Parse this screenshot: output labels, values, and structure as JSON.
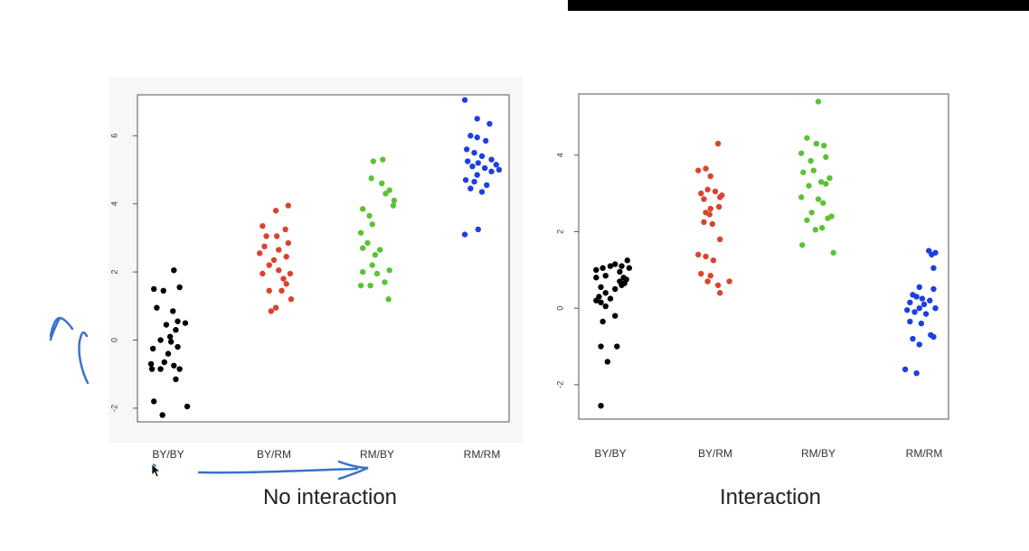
{
  "chart_data": [
    {
      "type": "scatter",
      "title": "",
      "caption": "No interaction",
      "xlabel": "",
      "ylabel": "",
      "categories": [
        "BY/BY",
        "BY/RM",
        "RM/BY",
        "RM/RM"
      ],
      "ylim": [
        -2.4,
        7.2
      ],
      "yticks": [
        -2,
        0,
        2,
        4,
        6
      ],
      "grid": false,
      "series": [
        {
          "category": "BY/BY",
          "color": "#000000",
          "points": [
            [
              -0.15,
              1.5
            ],
            [
              -0.05,
              1.45
            ],
            [
              0.06,
              2.05
            ],
            [
              0.12,
              1.55
            ],
            [
              -0.12,
              0.95
            ],
            [
              0.05,
              0.85
            ],
            [
              0.1,
              0.55
            ],
            [
              0.18,
              0.5
            ],
            [
              -0.02,
              0.45
            ],
            [
              0.08,
              0.3
            ],
            [
              0.02,
              0.1
            ],
            [
              -0.08,
              0.0
            ],
            [
              0.03,
              -0.05
            ],
            [
              -0.16,
              -0.25
            ],
            [
              0.1,
              -0.2
            ],
            [
              0.0,
              -0.4
            ],
            [
              -0.18,
              -0.7
            ],
            [
              -0.04,
              -0.65
            ],
            [
              0.06,
              -0.75
            ],
            [
              0.12,
              -0.85
            ],
            [
              -0.17,
              -0.85
            ],
            [
              -0.08,
              -0.85
            ],
            [
              0.08,
              -1.15
            ],
            [
              -0.15,
              -1.8
            ],
            [
              0.2,
              -1.95
            ],
            [
              -0.06,
              -2.2
            ]
          ]
        },
        {
          "category": "BY/RM",
          "color": "#d9432f",
          "points": [
            [
              -0.12,
              3.35
            ],
            [
              0.02,
              3.8
            ],
            [
              0.15,
              3.95
            ],
            [
              0.12,
              3.25
            ],
            [
              -0.08,
              3.05
            ],
            [
              0.03,
              3.05
            ],
            [
              0.15,
              2.85
            ],
            [
              -0.1,
              2.75
            ],
            [
              0.05,
              2.65
            ],
            [
              -0.15,
              2.55
            ],
            [
              0.0,
              2.35
            ],
            [
              0.13,
              2.45
            ],
            [
              -0.05,
              2.2
            ],
            [
              0.05,
              2.05
            ],
            [
              0.17,
              1.95
            ],
            [
              -0.12,
              1.95
            ],
            [
              0.1,
              1.8
            ],
            [
              0.13,
              1.65
            ],
            [
              -0.05,
              1.45
            ],
            [
              0.08,
              1.45
            ],
            [
              0.18,
              1.2
            ],
            [
              0.02,
              0.95
            ],
            [
              -0.03,
              0.85
            ]
          ]
        },
        {
          "category": "RM/BY",
          "color": "#5bc236",
          "points": [
            [
              -0.04,
              5.25
            ],
            [
              0.06,
              5.3
            ],
            [
              -0.06,
              4.75
            ],
            [
              0.05,
              4.6
            ],
            [
              0.13,
              4.4
            ],
            [
              0.09,
              4.3
            ],
            [
              0.18,
              4.1
            ],
            [
              0.17,
              3.95
            ],
            [
              -0.15,
              3.85
            ],
            [
              -0.08,
              3.65
            ],
            [
              -0.05,
              3.4
            ],
            [
              -0.17,
              3.15
            ],
            [
              -0.1,
              2.85
            ],
            [
              -0.15,
              2.7
            ],
            [
              0.03,
              2.65
            ],
            [
              -0.02,
              2.5
            ],
            [
              -0.05,
              2.2
            ],
            [
              0.13,
              2.05
            ],
            [
              -0.15,
              2.0
            ],
            [
              0.0,
              1.95
            ],
            [
              0.08,
              1.7
            ],
            [
              -0.07,
              1.6
            ],
            [
              -0.17,
              1.6
            ],
            [
              0.12,
              1.2
            ]
          ]
        },
        {
          "category": "RM/RM",
          "color": "#1d3fe0",
          "points": [
            [
              -0.18,
              7.05
            ],
            [
              -0.05,
              6.5
            ],
            [
              0.08,
              6.35
            ],
            [
              -0.12,
              6.0
            ],
            [
              -0.05,
              5.95
            ],
            [
              0.04,
              5.85
            ],
            [
              -0.16,
              5.6
            ],
            [
              -0.08,
              5.5
            ],
            [
              0.0,
              5.4
            ],
            [
              -0.15,
              5.25
            ],
            [
              -0.04,
              5.2
            ],
            [
              0.1,
              5.3
            ],
            [
              0.15,
              5.15
            ],
            [
              -0.1,
              5.1
            ],
            [
              0.03,
              5.05
            ],
            [
              0.18,
              5.0
            ],
            [
              0.1,
              4.95
            ],
            [
              -0.05,
              4.85
            ],
            [
              -0.17,
              4.7
            ],
            [
              -0.08,
              4.65
            ],
            [
              0.05,
              4.55
            ],
            [
              -0.12,
              4.45
            ],
            [
              0.0,
              4.35
            ],
            [
              -0.04,
              3.25
            ],
            [
              -0.18,
              3.1
            ]
          ]
        }
      ]
    },
    {
      "type": "scatter",
      "title": "",
      "caption": "Interaction",
      "xlabel": "",
      "ylabel": "",
      "categories": [
        "BY/BY",
        "BY/RM",
        "RM/BY",
        "RM/RM"
      ],
      "ylim": [
        -2.9,
        5.6
      ],
      "yticks": [
        -2,
        0,
        2,
        4
      ],
      "grid": false,
      "series": [
        {
          "category": "BY/BY",
          "color": "#000000",
          "points": [
            [
              0.18,
              1.25
            ],
            [
              0.12,
              1.1
            ],
            [
              0.2,
              1.05
            ],
            [
              -0.15,
              1.0
            ],
            [
              -0.08,
              1.05
            ],
            [
              0.0,
              1.1
            ],
            [
              0.05,
              1.15
            ],
            [
              0.1,
              0.95
            ],
            [
              0.14,
              0.8
            ],
            [
              0.17,
              0.75
            ],
            [
              -0.05,
              0.85
            ],
            [
              -0.15,
              0.8
            ],
            [
              0.15,
              0.65
            ],
            [
              0.12,
              0.6
            ],
            [
              -0.1,
              0.55
            ],
            [
              0.05,
              0.5
            ],
            [
              0.1,
              0.7
            ],
            [
              -0.05,
              0.4
            ],
            [
              -0.12,
              0.3
            ],
            [
              0.0,
              0.25
            ],
            [
              -0.1,
              0.15
            ],
            [
              -0.15,
              0.2
            ],
            [
              -0.05,
              0.05
            ],
            [
              0.05,
              -0.2
            ],
            [
              -0.08,
              -0.35
            ],
            [
              0.07,
              -1.0
            ],
            [
              -0.1,
              -1.0
            ],
            [
              -0.03,
              -1.4
            ],
            [
              -0.1,
              -2.55
            ]
          ]
        },
        {
          "category": "BY/RM",
          "color": "#d9432f",
          "points": [
            [
              0.03,
              4.3
            ],
            [
              -0.18,
              3.6
            ],
            [
              -0.1,
              3.65
            ],
            [
              -0.05,
              3.45
            ],
            [
              -0.15,
              3.0
            ],
            [
              -0.08,
              3.1
            ],
            [
              0.0,
              3.05
            ],
            [
              0.05,
              2.9
            ],
            [
              -0.12,
              2.85
            ],
            [
              0.07,
              2.95
            ],
            [
              -0.05,
              2.6
            ],
            [
              0.04,
              2.65
            ],
            [
              -0.1,
              2.5
            ],
            [
              -0.06,
              2.45
            ],
            [
              -0.12,
              2.25
            ],
            [
              -0.03,
              2.2
            ],
            [
              0.05,
              1.8
            ],
            [
              -0.18,
              1.4
            ],
            [
              -0.1,
              1.35
            ],
            [
              -0.02,
              1.25
            ],
            [
              -0.15,
              0.9
            ],
            [
              -0.05,
              0.85
            ],
            [
              0.15,
              0.7
            ],
            [
              0.03,
              0.6
            ],
            [
              -0.08,
              0.7
            ],
            [
              0.05,
              0.4
            ]
          ]
        },
        {
          "category": "RM/BY",
          "color": "#5bc236",
          "points": [
            [
              0.0,
              5.4
            ],
            [
              -0.12,
              4.45
            ],
            [
              -0.02,
              4.3
            ],
            [
              0.06,
              4.25
            ],
            [
              -0.18,
              4.05
            ],
            [
              -0.08,
              3.85
            ],
            [
              0.08,
              3.95
            ],
            [
              -0.05,
              3.6
            ],
            [
              0.12,
              3.4
            ],
            [
              -0.16,
              3.55
            ],
            [
              0.03,
              3.3
            ],
            [
              -0.1,
              3.2
            ],
            [
              0.08,
              3.25
            ],
            [
              -0.18,
              2.9
            ],
            [
              0.0,
              2.85
            ],
            [
              0.05,
              2.75
            ],
            [
              -0.07,
              2.5
            ],
            [
              0.14,
              2.4
            ],
            [
              -0.12,
              2.3
            ],
            [
              0.1,
              2.35
            ],
            [
              0.04,
              2.1
            ],
            [
              -0.03,
              2.05
            ],
            [
              -0.17,
              1.65
            ],
            [
              0.16,
              1.45
            ]
          ]
        },
        {
          "category": "RM/RM",
          "color": "#1d3fe0",
          "points": [
            [
              0.05,
              1.5
            ],
            [
              0.12,
              1.45
            ],
            [
              0.08,
              1.4
            ],
            [
              0.1,
              1.05
            ],
            [
              -0.05,
              0.55
            ],
            [
              0.1,
              0.5
            ],
            [
              -0.12,
              0.35
            ],
            [
              -0.08,
              0.3
            ],
            [
              -0.02,
              0.25
            ],
            [
              0.06,
              0.2
            ],
            [
              -0.15,
              0.15
            ],
            [
              0.0,
              0.1
            ],
            [
              -0.05,
              0.0
            ],
            [
              -0.18,
              -0.05
            ],
            [
              0.12,
              0.0
            ],
            [
              -0.1,
              -0.1
            ],
            [
              0.02,
              -0.15
            ],
            [
              -0.15,
              -0.35
            ],
            [
              -0.03,
              -0.4
            ],
            [
              0.07,
              -0.7
            ],
            [
              -0.12,
              -0.8
            ],
            [
              -0.05,
              -0.95
            ],
            [
              0.1,
              -0.75
            ],
            [
              -0.2,
              -1.6
            ],
            [
              -0.08,
              -1.7
            ]
          ]
        }
      ]
    }
  ]
}
